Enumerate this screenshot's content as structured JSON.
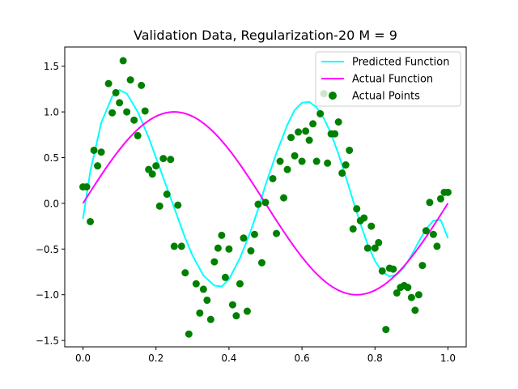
{
  "chart_data": {
    "type": "scatter",
    "title": "Validation Data, Regularization-20 M = 9",
    "xlabel": "",
    "ylabel": "",
    "xlim": [
      -0.05,
      1.05
    ],
    "ylim": [
      -1.57,
      1.71
    ],
    "xticks": [
      0.0,
      0.2,
      0.4,
      0.6,
      0.8,
      1.0
    ],
    "xtick_labels": [
      "0.0",
      "0.2",
      "0.4",
      "0.6",
      "0.8",
      "1.0"
    ],
    "yticks": [
      -1.5,
      -1.0,
      -0.5,
      0.0,
      0.5,
      1.0,
      1.5
    ],
    "ytick_labels": [
      "−1.5",
      "−1.0",
      "−0.5",
      "0.0",
      "0.5",
      "1.0",
      "1.5"
    ],
    "grid": false,
    "legend_position": "upper right",
    "series": [
      {
        "name": "Predicted Function",
        "kind": "line",
        "color": "#00ffff",
        "x": [
          0.0,
          0.02,
          0.05,
          0.08,
          0.1,
          0.12,
          0.15,
          0.18,
          0.2,
          0.23,
          0.25,
          0.28,
          0.3,
          0.33,
          0.36,
          0.38,
          0.4,
          0.43,
          0.46,
          0.48,
          0.5,
          0.53,
          0.56,
          0.58,
          0.6,
          0.62,
          0.64,
          0.66,
          0.68,
          0.7,
          0.72,
          0.74,
          0.76,
          0.78,
          0.8,
          0.82,
          0.84,
          0.86,
          0.88,
          0.9,
          0.92,
          0.94,
          0.96,
          0.98,
          1.0
        ],
        "y": [
          -0.17,
          0.35,
          0.88,
          1.17,
          1.24,
          1.2,
          1.0,
          0.72,
          0.5,
          0.17,
          -0.05,
          -0.38,
          -0.57,
          -0.79,
          -0.9,
          -0.91,
          -0.83,
          -0.6,
          -0.3,
          -0.06,
          0.2,
          0.55,
          0.86,
          1.02,
          1.1,
          1.11,
          1.05,
          0.93,
          0.76,
          0.54,
          0.29,
          0.03,
          -0.22,
          -0.45,
          -0.63,
          -0.75,
          -0.8,
          -0.78,
          -0.7,
          -0.57,
          -0.42,
          -0.28,
          -0.19,
          -0.18,
          -0.38
        ]
      },
      {
        "name": "Actual Function",
        "kind": "function",
        "formula": "sin(2πx)",
        "color": "#ff00ff"
      },
      {
        "name": "Actual Points",
        "kind": "scatter",
        "color": "#008000",
        "x": [
          0.0,
          0.01,
          0.02,
          0.03,
          0.04,
          0.05,
          0.07,
          0.08,
          0.09,
          0.1,
          0.11,
          0.12,
          0.13,
          0.14,
          0.15,
          0.16,
          0.17,
          0.18,
          0.19,
          0.2,
          0.21,
          0.22,
          0.23,
          0.24,
          0.25,
          0.26,
          0.27,
          0.28,
          0.29,
          0.31,
          0.32,
          0.33,
          0.34,
          0.35,
          0.36,
          0.37,
          0.38,
          0.39,
          0.4,
          0.41,
          0.42,
          0.43,
          0.44,
          0.45,
          0.46,
          0.47,
          0.48,
          0.49,
          0.5,
          0.52,
          0.53,
          0.54,
          0.55,
          0.56,
          0.57,
          0.58,
          0.59,
          0.6,
          0.61,
          0.62,
          0.63,
          0.64,
          0.65,
          0.66,
          0.67,
          0.68,
          0.69,
          0.7,
          0.71,
          0.72,
          0.73,
          0.74,
          0.75,
          0.76,
          0.77,
          0.78,
          0.79,
          0.8,
          0.81,
          0.82,
          0.83,
          0.84,
          0.85,
          0.86,
          0.87,
          0.88,
          0.89,
          0.9,
          0.91,
          0.92,
          0.93,
          0.94,
          0.95,
          0.96,
          0.97,
          0.98,
          0.99,
          1.0
        ],
        "y": [
          0.18,
          0.18,
          -0.2,
          0.58,
          0.41,
          0.56,
          1.31,
          0.99,
          1.21,
          1.1,
          1.56,
          1.0,
          1.35,
          0.91,
          0.74,
          1.29,
          1.01,
          0.37,
          0.32,
          0.41,
          -0.03,
          0.49,
          0.1,
          0.48,
          -0.47,
          -0.02,
          -0.47,
          -0.76,
          -1.43,
          -0.88,
          -1.2,
          -0.94,
          -1.06,
          -1.27,
          -0.64,
          -0.49,
          -0.35,
          -0.81,
          -0.5,
          -1.11,
          -1.23,
          -0.88,
          -0.38,
          -1.18,
          -0.52,
          -0.34,
          -0.01,
          -0.65,
          0.01,
          0.27,
          -0.33,
          0.46,
          0.06,
          0.37,
          0.72,
          0.52,
          0.78,
          0.46,
          0.79,
          0.69,
          0.87,
          0.46,
          0.98,
          1.2,
          0.44,
          0.76,
          0.76,
          0.89,
          0.33,
          0.42,
          0.58,
          -0.28,
          -0.06,
          -0.19,
          -0.16,
          -0.49,
          -0.25,
          -0.49,
          -0.43,
          -0.74,
          -1.38,
          -0.71,
          -0.72,
          -0.98,
          -0.92,
          -0.9,
          -0.92,
          -1.03,
          -1.17,
          -1.0,
          -0.68,
          -0.3,
          0.01,
          -0.34,
          -0.47,
          0.05,
          0.12,
          0.12
        ]
      }
    ]
  }
}
